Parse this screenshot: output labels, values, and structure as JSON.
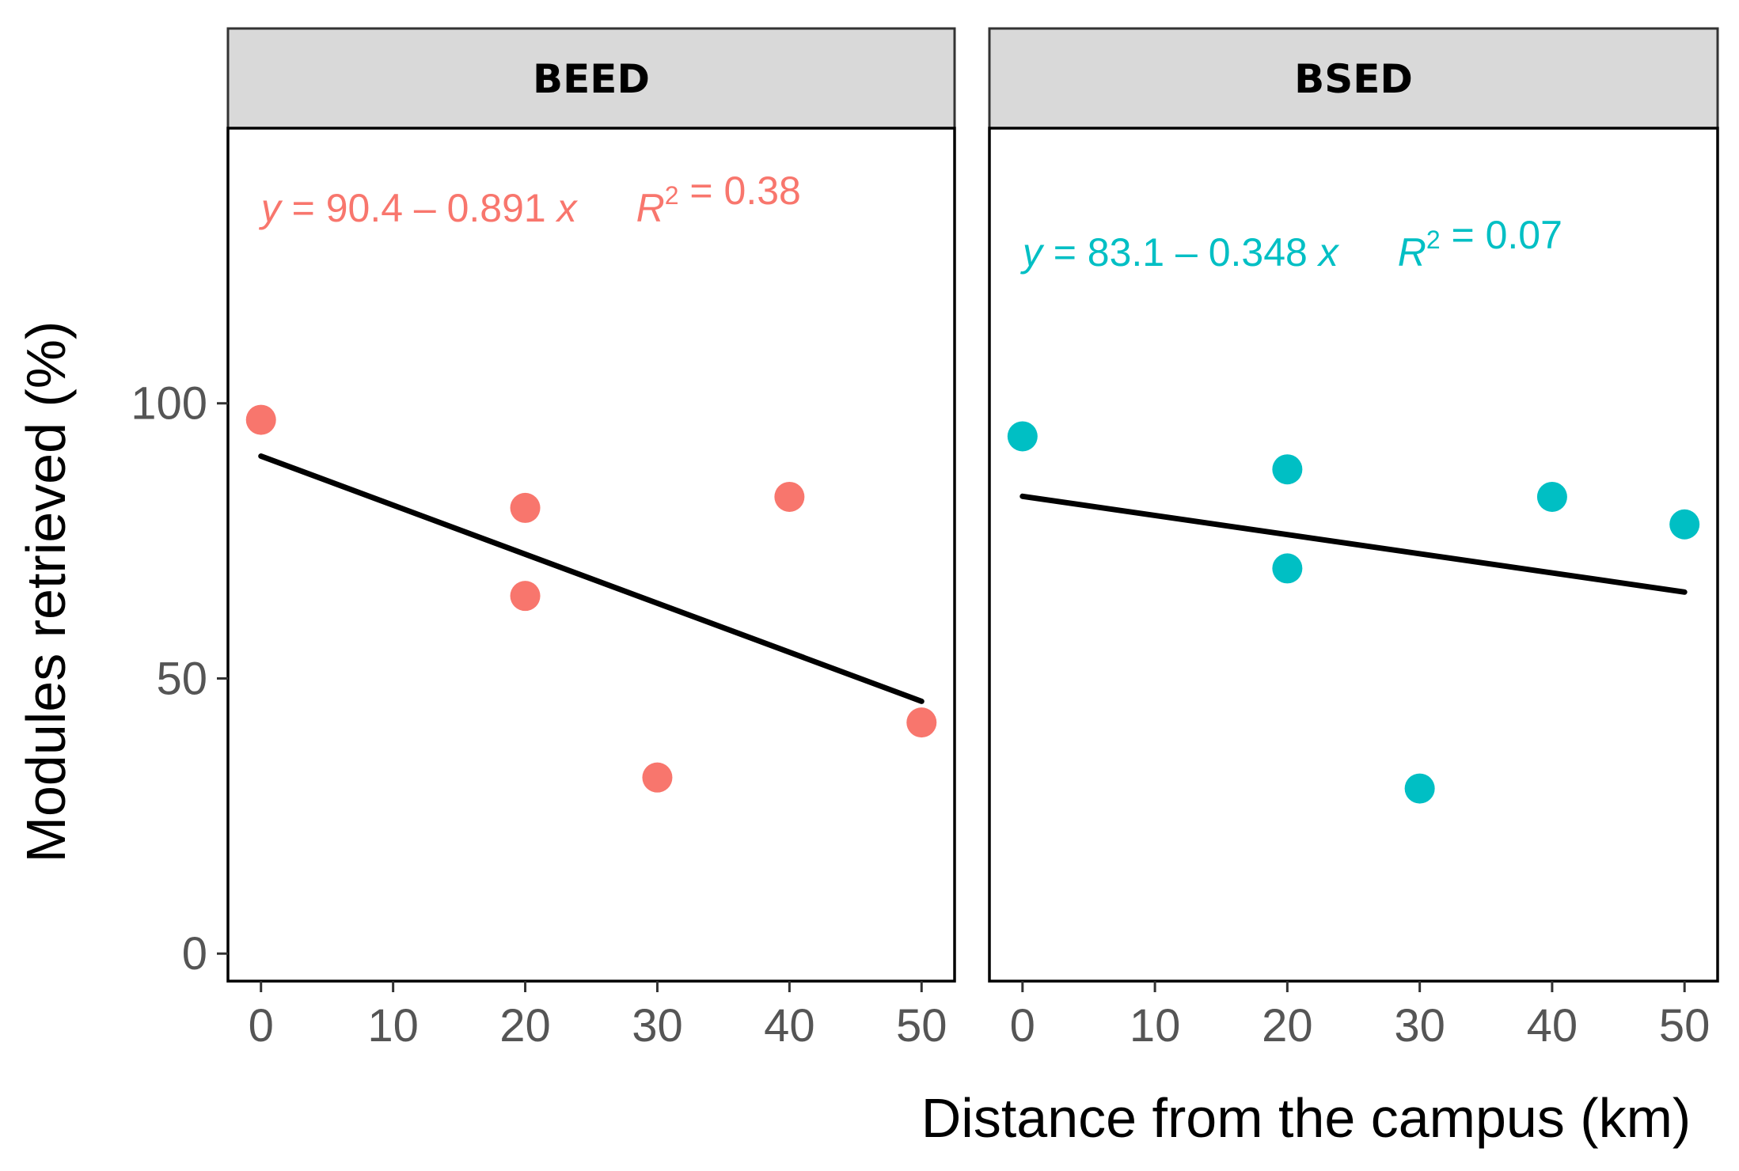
{
  "chart_data": {
    "type": "scatter",
    "xlabel": "Distance from the campus (km)",
    "ylabel": "Modules retrieved (%)",
    "xlim": [
      -2.5,
      52.5
    ],
    "ylim": [
      -5,
      150
    ],
    "x_ticks": [
      0,
      10,
      20,
      30,
      40,
      50
    ],
    "y_ticks": [
      0,
      50,
      100
    ],
    "panels": [
      {
        "label": "BEED",
        "color": "#F8766D",
        "points": [
          {
            "x": 0,
            "y": 97
          },
          {
            "x": 20,
            "y": 81
          },
          {
            "x": 20,
            "y": 65
          },
          {
            "x": 30,
            "y": 32
          },
          {
            "x": 40,
            "y": 83
          },
          {
            "x": 50,
            "y": 42
          }
        ],
        "fit": {
          "intercept": 90.4,
          "slope": -0.891,
          "x_range": [
            0,
            50
          ]
        },
        "equation": {
          "lhs": "y",
          "eq": " = 90.4 – 0.891 ",
          "var": "x",
          "r_sym": "R",
          "r_exp": "2",
          "r_val": " = 0.38",
          "y_value": 133
        }
      },
      {
        "label": "BSED",
        "color": "#00BFC4",
        "points": [
          {
            "x": 0,
            "y": 94
          },
          {
            "x": 20,
            "y": 88
          },
          {
            "x": 20,
            "y": 70
          },
          {
            "x": 30,
            "y": 30
          },
          {
            "x": 40,
            "y": 83
          },
          {
            "x": 50,
            "y": 78
          }
        ],
        "fit": {
          "intercept": 83.1,
          "slope": -0.348,
          "x_range": [
            0,
            50
          ]
        },
        "equation": {
          "lhs": "y",
          "eq": " = 83.1 – 0.348 ",
          "var": "x",
          "r_sym": "R",
          "r_exp": "2",
          "r_val": " = 0.07",
          "y_value": 125
        }
      }
    ]
  }
}
